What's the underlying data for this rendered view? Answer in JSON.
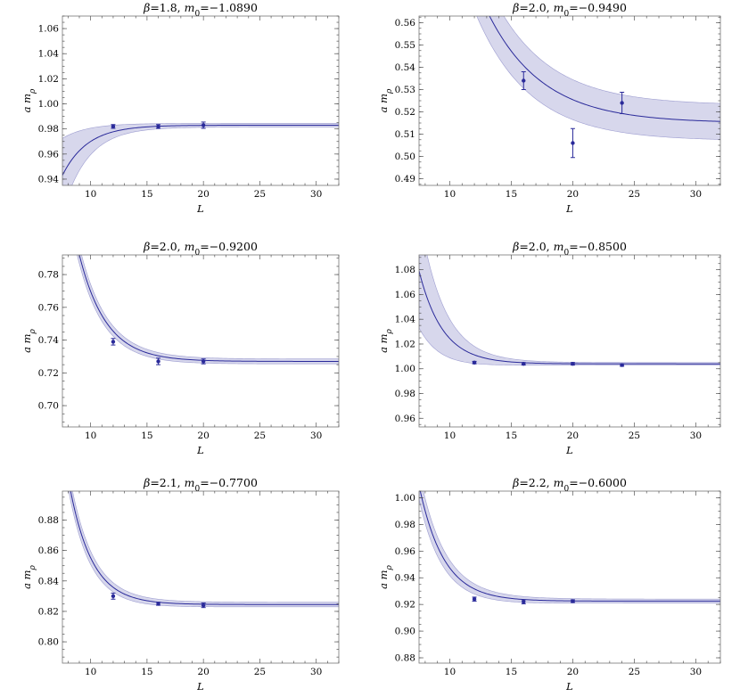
{
  "chart_data": [
    {
      "type": "scatter",
      "title_beta": "1.8",
      "title_m0": "−1.0890",
      "xlabel": "L",
      "ylabel_a": "a",
      "ylabel_m": "m",
      "ylabel_sub": "ρ",
      "xlim": [
        7.5,
        32
      ],
      "ylim": [
        0.935,
        1.07
      ],
      "xticks": [
        10,
        15,
        20,
        25,
        30
      ],
      "yticks": [
        0.94,
        0.96,
        0.98,
        1.0,
        1.02,
        1.04,
        1.06
      ],
      "ytick_labels": [
        "0.94",
        "0.96",
        "0.98",
        "1.00",
        "1.02",
        "1.04",
        "1.06"
      ],
      "fit": {
        "m_inf": 0.983,
        "amp": -0.04,
        "L0": 7.5,
        "decay": 0.45
      },
      "band": {
        "w_inf": 0.0015,
        "w_amp": 0.028,
        "decay": 0.45
      },
      "points": [
        {
          "x": 12,
          "y": 0.982,
          "err": 0.0015
        },
        {
          "x": 16,
          "y": 0.982,
          "err": 0.0015
        },
        {
          "x": 20,
          "y": 0.983,
          "err": 0.0025
        }
      ]
    },
    {
      "type": "scatter",
      "title_beta": "2.0",
      "title_m0": "−0.9490",
      "xlabel": "L",
      "ylabel_a": "a",
      "ylabel_m": "m",
      "ylabel_sub": "ρ",
      "xlim": [
        7.5,
        32
      ],
      "ylim": [
        0.487,
        0.563
      ],
      "xticks": [
        10,
        15,
        20,
        25,
        30
      ],
      "yticks": [
        0.49,
        0.5,
        0.51,
        0.52,
        0.53,
        0.54,
        0.55,
        0.56
      ],
      "ytick_labels": [
        "0.49",
        "0.50",
        "0.51",
        "0.52",
        "0.53",
        "0.54",
        "0.55",
        "0.56"
      ],
      "fit": {
        "m_inf": 0.515,
        "amp": 0.0452,
        "L0": 13.5,
        "decay": 0.225
      },
      "band": {
        "w_inf": 0.008,
        "w_amp": 0.012,
        "decay": 0.2
      },
      "points": [
        {
          "x": 16,
          "y": 0.534,
          "err": 0.004
        },
        {
          "x": 20,
          "y": 0.506,
          "err": 0.0065
        },
        {
          "x": 24,
          "y": 0.524,
          "err": 0.0048
        }
      ]
    },
    {
      "type": "scatter",
      "title_beta": "2.0",
      "title_m0": "−0.9200",
      "xlabel": "L",
      "ylabel_a": "a",
      "ylabel_m": "m",
      "ylabel_sub": "ρ",
      "xlim": [
        7.5,
        32
      ],
      "ylim": [
        0.687,
        0.792
      ],
      "xticks": [
        10,
        15,
        20,
        25,
        30
      ],
      "yticks": [
        0.7,
        0.72,
        0.74,
        0.76,
        0.78
      ],
      "ytick_labels": [
        "0.70",
        "0.72",
        "0.74",
        "0.76",
        "0.78"
      ],
      "fit": {
        "m_inf": 0.727,
        "amp": 0.065,
        "L0": 9,
        "decay": 0.42
      },
      "band": {
        "w_inf": 0.0015,
        "w_amp": 0.006,
        "decay": 0.3
      },
      "points": [
        {
          "x": 12,
          "y": 0.739,
          "err": 0.002
        },
        {
          "x": 16,
          "y": 0.727,
          "err": 0.002
        },
        {
          "x": 20,
          "y": 0.727,
          "err": 0.0015
        }
      ]
    },
    {
      "type": "scatter",
      "title_beta": "2.0",
      "title_m0": "−0.8500",
      "xlabel": "L",
      "ylabel_a": "a",
      "ylabel_m": "m",
      "ylabel_sub": "ρ",
      "xlim": [
        7.5,
        32
      ],
      "ylim": [
        0.953,
        1.092
      ],
      "xticks": [
        10,
        15,
        20,
        25,
        30
      ],
      "yticks": [
        0.96,
        0.98,
        1.0,
        1.02,
        1.04,
        1.06,
        1.08
      ],
      "ytick_labels": [
        "0.96",
        "0.98",
        "1.00",
        "1.02",
        "1.04",
        "1.06",
        "1.08"
      ],
      "fit": {
        "m_inf": 1.004,
        "amp": 0.075,
        "L0": 7.5,
        "decay": 0.52
      },
      "band": {
        "w_inf": 0.001,
        "w_amp": 0.045,
        "decay": 0.45
      },
      "points": [
        {
          "x": 12,
          "y": 1.005,
          "err": 0.001
        },
        {
          "x": 16,
          "y": 1.004,
          "err": 0.001
        },
        {
          "x": 20,
          "y": 1.004,
          "err": 0.001
        },
        {
          "x": 24,
          "y": 1.003,
          "err": 0.001
        }
      ]
    },
    {
      "type": "scatter",
      "title_beta": "2.1",
      "title_m0": "−0.7700",
      "xlabel": "L",
      "ylabel_a": "a",
      "ylabel_m": "m",
      "ylabel_sub": "ρ",
      "xlim": [
        7.5,
        32
      ],
      "ylim": [
        0.786,
        0.899
      ],
      "xticks": [
        10,
        15,
        20,
        25,
        30
      ],
      "yticks": [
        0.8,
        0.82,
        0.84,
        0.86,
        0.88
      ],
      "ytick_labels": [
        "0.80",
        "0.82",
        "0.84",
        "0.86",
        "0.88"
      ],
      "fit": {
        "m_inf": 0.8245,
        "amp": 0.0755,
        "L0": 8.2,
        "decay": 0.5
      },
      "band": {
        "w_inf": 0.0015,
        "w_amp": 0.006,
        "decay": 0.3
      },
      "points": [
        {
          "x": 12,
          "y": 0.83,
          "err": 0.002
        },
        {
          "x": 16,
          "y": 0.825,
          "err": 0.001
        },
        {
          "x": 20,
          "y": 0.824,
          "err": 0.0015
        }
      ]
    },
    {
      "type": "scatter",
      "title_beta": "2.2",
      "title_m0": "−0.6000",
      "xlabel": "L",
      "ylabel_a": "a",
      "ylabel_m": "m",
      "ylabel_sub": "ρ",
      "xlim": [
        7.5,
        32
      ],
      "ylim": [
        0.876,
        1.005
      ],
      "xticks": [
        10,
        15,
        20,
        25,
        30
      ],
      "yticks": [
        0.88,
        0.9,
        0.92,
        0.94,
        0.96,
        0.98,
        1.0
      ],
      "ytick_labels": [
        "0.88",
        "0.90",
        "0.92",
        "0.94",
        "0.96",
        "0.98",
        "1.00"
      ],
      "fit": {
        "m_inf": 0.9225,
        "amp": 0.0825,
        "L0": 7.6,
        "decay": 0.5
      },
      "band": {
        "w_inf": 0.0015,
        "w_amp": 0.009,
        "decay": 0.3
      },
      "points": [
        {
          "x": 12,
          "y": 0.924,
          "err": 0.0015
        },
        {
          "x": 16,
          "y": 0.922,
          "err": 0.0015
        },
        {
          "x": 20,
          "y": 0.9225,
          "err": 0.001
        }
      ]
    }
  ]
}
